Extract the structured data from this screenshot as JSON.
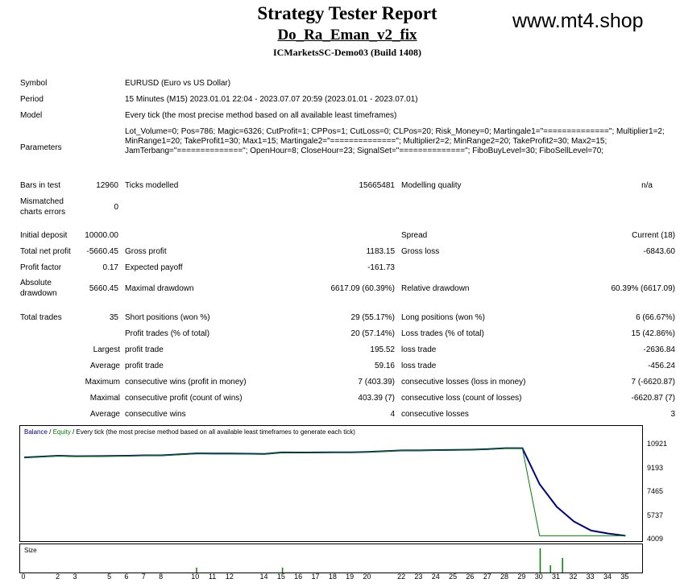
{
  "header": {
    "title": "Strategy Tester Report",
    "expert": "Do_Ra_Eman_v2_fix",
    "server": "ICMarketsSC-Demo03 (Build 1408)",
    "watermark": "www.mt4.shop"
  },
  "summary": {
    "symbol_label": "Symbol",
    "symbol_value": "EURUSD (Euro vs US Dollar)",
    "period_label": "Period",
    "period_value": "15 Minutes (M15) 2023.01.01 22:04 - 2023.07.07 20:59 (2023.01.01 - 2023.07.01)",
    "model_label": "Model",
    "model_value": "Every tick (the most precise method based on all available least timeframes)",
    "parameters_label": "Parameters",
    "parameters_value": "Lot_Volume=0; Pos=786; Magic=6326; CutProfit=1; CPPos=1; CutLoss=0; CLPos=20; Risk_Money=0; Martingale1=\"==============\"; Multiplier1=2; MinRange1=20; TakeProfit1=30; Max1=15; Martingale2=\"==============\"; Multiplier2=2; MinRange2=20; TakeProfit2=30; Max2=15; JamTerbang=\"==============\"; OpenHour=8; CloseHour=23; SignalSet=\"==============\"; FiboBuyLevel=30; FiboSellLevel=70;"
  },
  "stats": {
    "bars_label": "Bars in test",
    "bars_value": "12960",
    "ticks_label": "Ticks modelled",
    "ticks_value": "15665481",
    "quality_label": "Modelling quality",
    "quality_value": "n/a",
    "mismatch_label_1": "Mismatched",
    "mismatch_label_2": "charts errors",
    "mismatch_value": "0",
    "deposit_label": "Initial deposit",
    "deposit_value": "10000.00",
    "spread_label": "Spread",
    "spread_value": "Current (18)",
    "netprofit_label": "Total net profit",
    "netprofit_value": "-5660.45",
    "grossprofit_label": "Gross profit",
    "grossprofit_value": "1183.15",
    "grossloss_label": "Gross loss",
    "grossloss_value": "-6843.60",
    "pf_label": "Profit factor",
    "pf_value": "0.17",
    "payoff_label": "Expected payoff",
    "payoff_value": "-161.73",
    "absdd_label_1": "Absolute",
    "absdd_label_2": "drawdown",
    "absdd_value": "5660.45",
    "maxdd_label": "Maximal drawdown",
    "maxdd_value": "6617.09 (60.39%)",
    "reldd_label": "Relative drawdown",
    "reldd_value": "60.39% (6617.09)",
    "trades_label": "Total trades",
    "trades_value": "35",
    "short_label": "Short positions (won %)",
    "short_value": "29 (55.17%)",
    "long_label": "Long positions (won %)",
    "long_value": "6 (66.67%)",
    "profittrades_label": "Profit trades (% of total)",
    "profittrades_value": "20 (57.14%)",
    "losstrades_label": "Loss trades (% of total)",
    "losstrades_value": "15 (42.86%)",
    "largest_label": "Largest",
    "largest_profit_label": "profit trade",
    "largest_profit_value": "195.52",
    "largest_loss_label": "loss trade",
    "largest_loss_value": "-2636.84",
    "average_label": "Average",
    "average_profit_label": "profit trade",
    "average_profit_value": "59.16",
    "average_loss_label": "loss trade",
    "average_loss_value": "-456.24",
    "maximum_label": "Maximum",
    "max_wins_label": "consecutive wins (profit in money)",
    "max_wins_value": "7 (403.39)",
    "max_losses_label": "consecutive losses (loss in money)",
    "max_losses_value": "7 (-6620.87)",
    "maximal_label": "Maximal",
    "maximal_profit_label": "consecutive profit (count of wins)",
    "maximal_profit_value": "403.39 (7)",
    "maximal_loss_label": "consecutive loss (count of losses)",
    "maximal_loss_value": "-6620.87 (7)",
    "avg_consec_label": "Average",
    "avg_consec_wins_label": "consecutive wins",
    "avg_consec_wins_value": "4",
    "avg_consec_losses_label": "consecutive losses",
    "avg_consec_losses_value": "3"
  },
  "chart_legend": {
    "balance": "Balance",
    "sep1": " / ",
    "equity": "Equity",
    "rest": " / Every tick (the most precise method based on all available least timeframes to generate each tick)",
    "balance_color": "#000080",
    "equity_color": "#008000"
  },
  "size_label": "Size",
  "chart_data": {
    "type": "line",
    "ylim": [
      4009,
      11400
    ],
    "y_ticks": [
      "10921",
      "9193",
      "7465",
      "5737",
      "4009"
    ],
    "y_tick_values": [
      10921,
      9193,
      7465,
      5737,
      4009
    ],
    "x_ticks": [
      "0",
      "2",
      "3",
      "5",
      "6",
      "7",
      "8",
      "10",
      "11",
      "12",
      "14",
      "15",
      "16",
      "17",
      "18",
      "19",
      "20",
      "22",
      "23",
      "24",
      "25",
      "26",
      "27",
      "28",
      "29",
      "30",
      "31",
      "32",
      "33",
      "34",
      "35"
    ],
    "x_tick_values": [
      0,
      2,
      3,
      5,
      6,
      7,
      8,
      10,
      11,
      12,
      14,
      15,
      16,
      17,
      18,
      19,
      20,
      22,
      23,
      24,
      25,
      26,
      27,
      28,
      29,
      30,
      31,
      32,
      33,
      34,
      35
    ],
    "xlim": [
      0,
      35.5
    ],
    "series": [
      {
        "name": "Balance",
        "color": "#000080",
        "x": [
          0,
          2,
          3,
          5,
          6,
          7,
          8,
          10,
          11,
          12,
          14,
          15,
          16,
          17,
          18,
          19,
          20,
          22,
          23,
          24,
          25,
          26,
          27,
          28,
          29,
          30,
          31,
          32,
          33,
          34,
          35
        ],
        "y": [
          10040,
          10170,
          10130,
          10150,
          10170,
          10200,
          10200,
          10340,
          10330,
          10330,
          10300,
          10410,
          10400,
          10410,
          10420,
          10420,
          10450,
          10560,
          10560,
          10580,
          10590,
          10610,
          10650,
          10720,
          10720,
          8100,
          6450,
          5380,
          4720,
          4500,
          4340
        ]
      },
      {
        "name": "Equity",
        "color": "#008000",
        "x": [
          0,
          2,
          3,
          5,
          6,
          7,
          8,
          10,
          11,
          12,
          14,
          15,
          16,
          17,
          18,
          19,
          20,
          22,
          23,
          24,
          25,
          26,
          27,
          28,
          29,
          30,
          31,
          32,
          33,
          34,
          35
        ],
        "y": [
          10020,
          10150,
          10110,
          10130,
          10150,
          10180,
          10180,
          10310,
          10300,
          10300,
          10280,
          10390,
          10380,
          10390,
          10400,
          10400,
          10430,
          10540,
          10540,
          10560,
          10570,
          10590,
          10630,
          10700,
          10700,
          4340,
          4340,
          4340,
          4340,
          4340,
          4340
        ]
      }
    ],
    "size_bars": {
      "x": [
        10,
        15,
        30,
        30.6,
        31.3
      ],
      "h": [
        0.2,
        0.2,
        1.0,
        0.3,
        0.6
      ]
    }
  }
}
